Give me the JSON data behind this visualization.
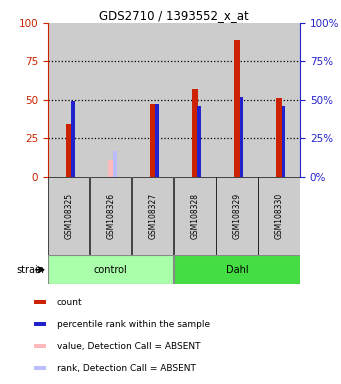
{
  "title": "GDS2710 / 1393552_x_at",
  "samples": [
    "GSM108325",
    "GSM108326",
    "GSM108327",
    "GSM108328",
    "GSM108329",
    "GSM108330"
  ],
  "red_bars": [
    34,
    null,
    47,
    57,
    89,
    51
  ],
  "blue_marks": [
    49,
    null,
    47,
    46,
    52,
    46
  ],
  "pink_bars": [
    null,
    11,
    null,
    null,
    null,
    null
  ],
  "lavender_marks": [
    null,
    17,
    null,
    null,
    null,
    null
  ],
  "ylim": [
    0,
    100
  ],
  "red_color": "#cc2200",
  "blue_color": "#2222cc",
  "pink_color": "#ffbbbb",
  "lavender_color": "#bbbbff",
  "bg_gray": "#cccccc",
  "bg_plot": "#ffffff",
  "left_axis_color": "#cc2200",
  "right_axis_color": "#2222cc",
  "yticks": [
    0,
    25,
    50,
    75,
    100
  ],
  "control_color": "#aaffaa",
  "dahl_color": "#44dd44",
  "legend_items": [
    {
      "color": "#cc2200",
      "label": "count"
    },
    {
      "color": "#2222cc",
      "label": "percentile rank within the sample"
    },
    {
      "color": "#ffbbbb",
      "label": "value, Detection Call = ABSENT"
    },
    {
      "color": "#bbbbff",
      "label": "rank, Detection Call = ABSENT"
    }
  ]
}
